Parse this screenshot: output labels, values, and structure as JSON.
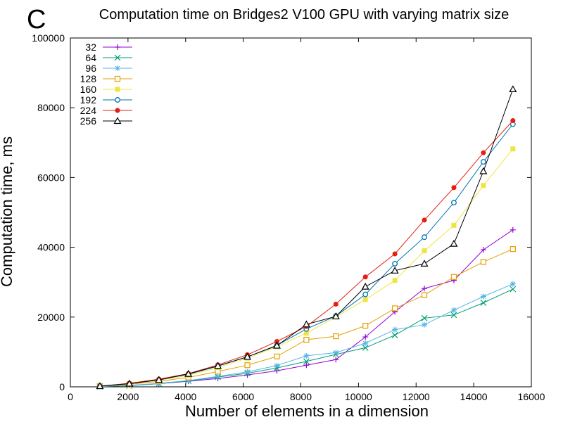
{
  "panel_label": "C",
  "chart_data": {
    "type": "line",
    "title": "Computation time on Bridges2 V100 GPU with varying matrix size",
    "xlabel": "Number of elements in a dimension",
    "ylabel": "Computation time, ms",
    "xlim": [
      0,
      16000
    ],
    "ylim": [
      0,
      100000
    ],
    "xticks": [
      0,
      2000,
      4000,
      6000,
      8000,
      10000,
      12000,
      14000,
      16000
    ],
    "yticks": [
      0,
      20000,
      40000,
      60000,
      80000,
      100000
    ],
    "x": [
      1024,
      2048,
      3072,
      4096,
      5120,
      6144,
      7168,
      8192,
      9216,
      10240,
      11264,
      12288,
      13312,
      14336,
      15360
    ],
    "legend_position": "top-left",
    "series": [
      {
        "name": "32",
        "color": "#9400d3",
        "marker": "plus",
        "values": [
          100,
          400,
          900,
          1600,
          2400,
          3400,
          4600,
          6200,
          7800,
          14300,
          21500,
          28200,
          30500,
          39300,
          45000
        ]
      },
      {
        "name": "64",
        "color": "#009e73",
        "marker": "cross",
        "values": [
          100,
          300,
          900,
          1700,
          2800,
          3900,
          5400,
          7300,
          9300,
          11200,
          14800,
          19700,
          20600,
          24100,
          28000
        ]
      },
      {
        "name": "96",
        "color": "#56b4e9",
        "marker": "star",
        "values": [
          100,
          400,
          1000,
          1800,
          3000,
          4300,
          6100,
          8900,
          9800,
          12500,
          16400,
          17800,
          22000,
          25900,
          29500
        ]
      },
      {
        "name": "128",
        "color": "#e69f00",
        "marker": "open-square",
        "values": [
          200,
          700,
          1600,
          2700,
          4400,
          6200,
          8700,
          13500,
          14500,
          17500,
          22500,
          26300,
          31500,
          35800,
          39500
        ]
      },
      {
        "name": "160",
        "color": "#f0e442",
        "marker": "filled-square",
        "values": [
          200,
          900,
          1900,
          3300,
          5500,
          8200,
          11500,
          15400,
          20000,
          25000,
          30500,
          39000,
          46300,
          57700,
          68200
        ]
      },
      {
        "name": "192",
        "color": "#0072b2",
        "marker": "open-circle",
        "values": [
          200,
          900,
          2000,
          3600,
          5900,
          8600,
          11900,
          16600,
          20300,
          26500,
          35300,
          42900,
          52800,
          64500,
          75300
        ]
      },
      {
        "name": "224",
        "color": "#e51e10",
        "marker": "filled-circle",
        "values": [
          200,
          1000,
          2200,
          3800,
          6300,
          9200,
          13000,
          17300,
          23700,
          31500,
          38100,
          47800,
          57100,
          67100,
          76300
        ]
      },
      {
        "name": "256",
        "color": "#000000",
        "marker": "open-triangle",
        "values": [
          200,
          900,
          2000,
          3700,
          6000,
          8600,
          11800,
          17900,
          20200,
          28700,
          33300,
          35300,
          41000,
          61800,
          85300
        ]
      }
    ]
  }
}
